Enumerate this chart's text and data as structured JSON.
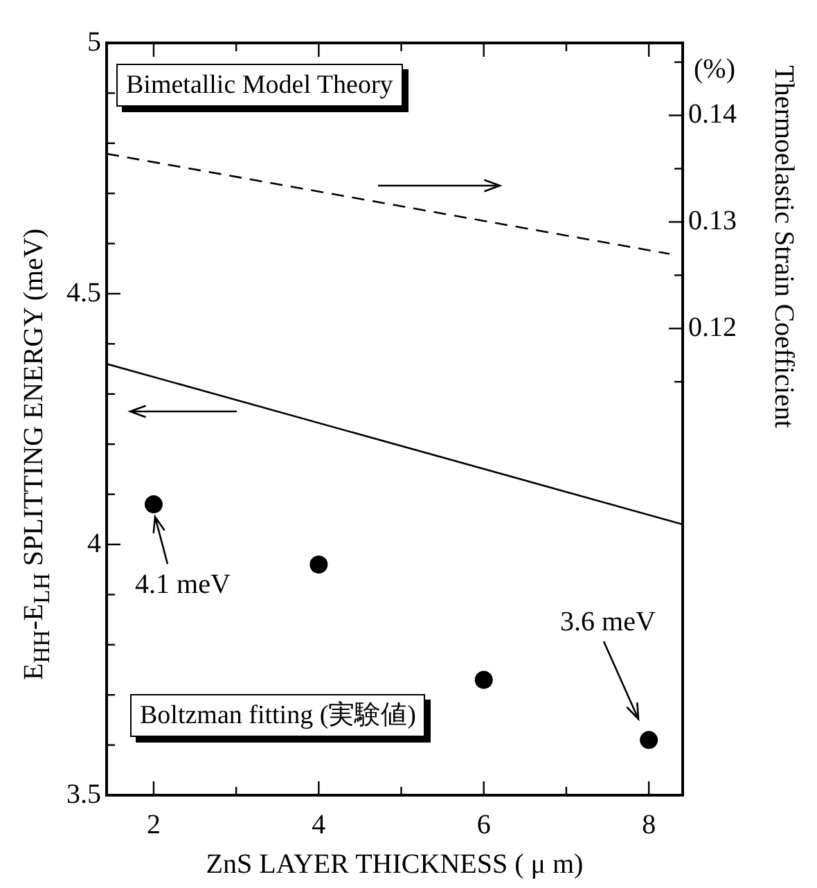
{
  "chart_data": {
    "type": "scatter",
    "xlabel": "ZnS LAYER THICKNESS ( μ m)",
    "ylabel": "E$_{HH}$-E$_{LH}$  SPLITTING ENERGY  (meV)",
    "y2label": "Thermoelastic Strain Coefficient",
    "xlim": [
      1.43,
      8.41
    ],
    "xticks": [
      2,
      {
        "value": 3,
        "label": null
      },
      4,
      {
        "value": 5,
        "label": null
      },
      6,
      {
        "value": 7,
        "label": null
      },
      8
    ],
    "ylim": [
      3.5,
      5
    ],
    "yticks": [
      3.5,
      {
        "value": 3.6,
        "label": null
      },
      {
        "value": 3.7,
        "label": null
      },
      {
        "value": 3.8,
        "label": null
      },
      {
        "value": 3.9,
        "label": null
      },
      4,
      {
        "value": 4.1,
        "label": null
      },
      {
        "value": 4.2,
        "label": null
      },
      {
        "value": 4.3,
        "label": null
      },
      {
        "value": 4.4,
        "label": null
      },
      4.5,
      {
        "value": 4.6,
        "label": null
      },
      {
        "value": 4.7,
        "label": null
      },
      {
        "value": 4.8,
        "label": null
      },
      {
        "value": 4.9,
        "label": null
      },
      5
    ],
    "y2lim": [
      0.0762,
      0.1468
    ],
    "y2ticks": [
      {
        "value": 0.115,
        "label": null
      },
      0.12,
      {
        "value": 0.125,
        "label": null
      },
      0.13,
      {
        "value": 0.135,
        "label": null
      },
      0.14,
      {
        "value": 0.145,
        "label": null
      }
    ],
    "series": [
      {
        "color": "#000000",
        "x": [
          2,
          4,
          6,
          8
        ],
        "values": [
          4.08,
          3.96,
          3.73,
          3.61
        ],
        "marker": "circle"
      },
      {
        "type": "line",
        "color": "#000000",
        "x": [
          1.43,
          8.41
        ],
        "values": [
          4.36,
          4.04
        ],
        "line_style": "solid",
        "marker": "none"
      },
      {
        "type": "line",
        "axis": "y2",
        "color": "#000000",
        "x": [
          1.43,
          8.25
        ],
        "values": [
          0.1364,
          0.127
        ],
        "line_style": "dashed",
        "marker": "none"
      }
    ],
    "annotations": [
      "Bimetallic Model Theory",
      "Boltzman fitting (実験値)",
      "(%)",
      {
        "text": "4.1 meV",
        "x": 2,
        "y": 4.08
      },
      "3.6 meV"
    ],
    "grid": false,
    "legend": false
  }
}
